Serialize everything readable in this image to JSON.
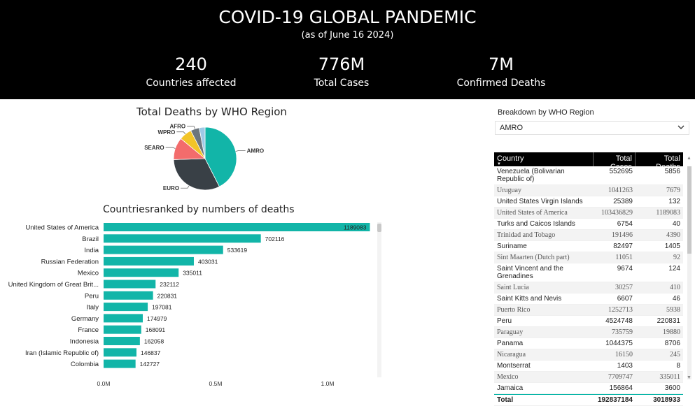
{
  "header": {
    "title": "COVID-19 GLOBAL PANDEMIC",
    "subtitle": "(as of June 16 2024)",
    "kpis": [
      {
        "value": "240",
        "label": "Countries affected"
      },
      {
        "value": "776M",
        "label": "Total Cases"
      },
      {
        "value": "7M",
        "label": "Confirmed Deaths"
      }
    ]
  },
  "pie": {
    "title": "Total Deaths by WHO Region"
  },
  "bar": {
    "title": "Countriesranked by numbers of deaths"
  },
  "slicer": {
    "label": "Breakdown by WHO Region",
    "value": "AMRO"
  },
  "table": {
    "headers": [
      "Country",
      "Total Cases",
      "Total Deaths"
    ],
    "rows": [
      [
        "Venezuela (Bolivarian Republic of)",
        "552695",
        "5856"
      ],
      [
        "Uruguay",
        "1041263",
        "7679"
      ],
      [
        "United States Virgin Islands",
        "25389",
        "132"
      ],
      [
        "United States of America",
        "103436829",
        "1189083"
      ],
      [
        "Turks and Caicos Islands",
        "6754",
        "40"
      ],
      [
        "Trinidad and Tobago",
        "191496",
        "4390"
      ],
      [
        "Suriname",
        "82497",
        "1405"
      ],
      [
        "Sint Maarten (Dutch part)",
        "11051",
        "92"
      ],
      [
        "Saint Vincent and the Grenadines",
        "9674",
        "124"
      ],
      [
        "Saint Lucia",
        "30257",
        "410"
      ],
      [
        "Saint Kitts and Nevis",
        "6607",
        "46"
      ],
      [
        "Puerto Rico",
        "1252713",
        "5938"
      ],
      [
        "Peru",
        "4524748",
        "220831"
      ],
      [
        "Paraguay",
        "735759",
        "19880"
      ],
      [
        "Panama",
        "1044375",
        "8706"
      ],
      [
        "Nicaragua",
        "16150",
        "245"
      ],
      [
        "Montserrat",
        "1403",
        "8"
      ],
      [
        "Mexico",
        "7709747",
        "335011"
      ],
      [
        "Jamaica",
        "156864",
        "3600"
      ]
    ],
    "total": [
      "Total",
      "192837184",
      "3018933"
    ]
  },
  "colors": {
    "teal": "#12b5a8",
    "dark": "#394046",
    "red": "#f36c6c",
    "yellow": "#f2c428",
    "gray": "#6c757d",
    "lightblue": "#9fc9e6"
  },
  "chart_data": [
    {
      "type": "pie",
      "title": "Total Deaths by WHO Region",
      "labels": [
        "AMRO",
        "EURO",
        "SEARO",
        "WPRO",
        "AFRO",
        ""
      ],
      "values": [
        42.5,
        32.0,
        11.5,
        6.5,
        4.5,
        3.0
      ],
      "colors": [
        "#12b5a8",
        "#394046",
        "#f36c6c",
        "#f2c428",
        "#6c757d",
        "#9fc9e6"
      ]
    },
    {
      "type": "bar",
      "orientation": "horizontal",
      "title": "Countriesranked by numbers of deaths",
      "categories": [
        "United States of America",
        "Brazil",
        "India",
        "Russian Federation",
        "Mexico",
        "United Kingdom of Great Brit...",
        "Peru",
        "Italy",
        "Germany",
        "France",
        "Indonesia",
        "Iran (Islamic Republic of)",
        "Colombia"
      ],
      "values": [
        1189083,
        702116,
        533619,
        403031,
        335011,
        232112,
        220831,
        197081,
        174979,
        168091,
        162058,
        146837,
        142727
      ],
      "xticks": [
        "0.0M",
        "0.5M",
        "1.0M"
      ],
      "xlim": [
        0,
        1250000
      ]
    }
  ]
}
